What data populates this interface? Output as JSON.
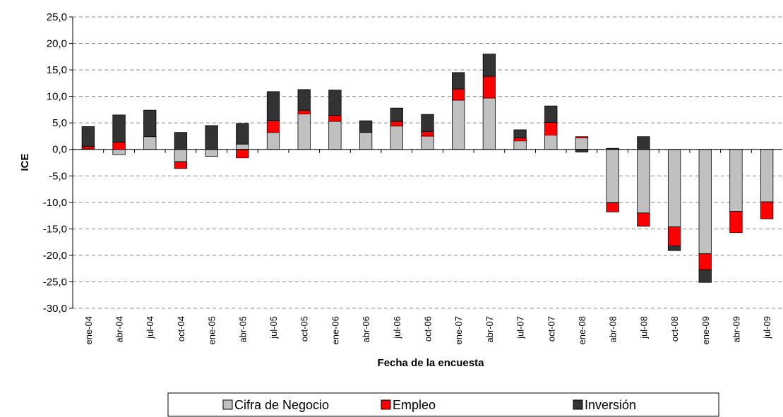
{
  "chart_data": {
    "type": "stacked_bar",
    "ylabel": "ICE",
    "xlabel": "Fecha de la encuesta",
    "categories": [
      "ene-04",
      "abr-04",
      "jul-04",
      "oct-04",
      "ene-05",
      "abr-05",
      "jul-05",
      "oct-05",
      "ene-06",
      "abr-06",
      "jul-06",
      "oct-06",
      "ene-07",
      "abr-07",
      "jul-07",
      "oct-07",
      "ene-08",
      "abr-08",
      "jul-08",
      "oct-08",
      "ene-09",
      "abr-09",
      "jul-09"
    ],
    "series": [
      {
        "name": "Cifra de Negocio",
        "color": "#c0c0c0",
        "values": [
          0.1,
          -1.0,
          2.4,
          -2.3,
          -1.3,
          1.0,
          3.2,
          6.7,
          5.3,
          3.2,
          4.4,
          2.5,
          9.3,
          9.7,
          1.6,
          2.7,
          2.2,
          -10.0,
          -12.0,
          -14.6,
          -19.7,
          -11.7,
          -9.9
        ]
      },
      {
        "name": "Empleo",
        "color": "#ff0000",
        "values": [
          0.5,
          1.4,
          0,
          -1.3,
          0,
          -1.6,
          2.3,
          0.7,
          1.1,
          0,
          0.9,
          0.9,
          2.1,
          4.1,
          0.6,
          2.4,
          0.2,
          -1.8,
          -2.5,
          -3.6,
          -3.0,
          -4.0,
          -3.2
        ]
      },
      {
        "name": "Inversión",
        "color": "#333333",
        "values": [
          3.7,
          5.1,
          5.0,
          3.2,
          4.5,
          3.9,
          5.4,
          3.9,
          4.8,
          2.2,
          2.5,
          3.2,
          3.1,
          4.2,
          1.5,
          3.1,
          -0.5,
          0.2,
          2.4,
          -0.9,
          -2.4,
          0,
          0
        ]
      }
    ],
    "ylim": [
      -30,
      25
    ],
    "yticks": [
      {
        "value": -30,
        "label": "-30,0"
      },
      {
        "value": -25,
        "label": "-25,0"
      },
      {
        "value": -20,
        "label": "-20,0"
      },
      {
        "value": -15,
        "label": "-15,0"
      },
      {
        "value": -10,
        "label": "-10,0"
      },
      {
        "value": -5,
        "label": "-5,0"
      },
      {
        "value": 0,
        "label": "0,0"
      },
      {
        "value": 5,
        "label": "5,0"
      },
      {
        "value": 10,
        "label": "10,0"
      },
      {
        "value": 15,
        "label": "15,0"
      },
      {
        "value": 20,
        "label": "20,0"
      },
      {
        "value": 25,
        "label": "25,0"
      }
    ],
    "grid": true,
    "legend": "bottom"
  }
}
